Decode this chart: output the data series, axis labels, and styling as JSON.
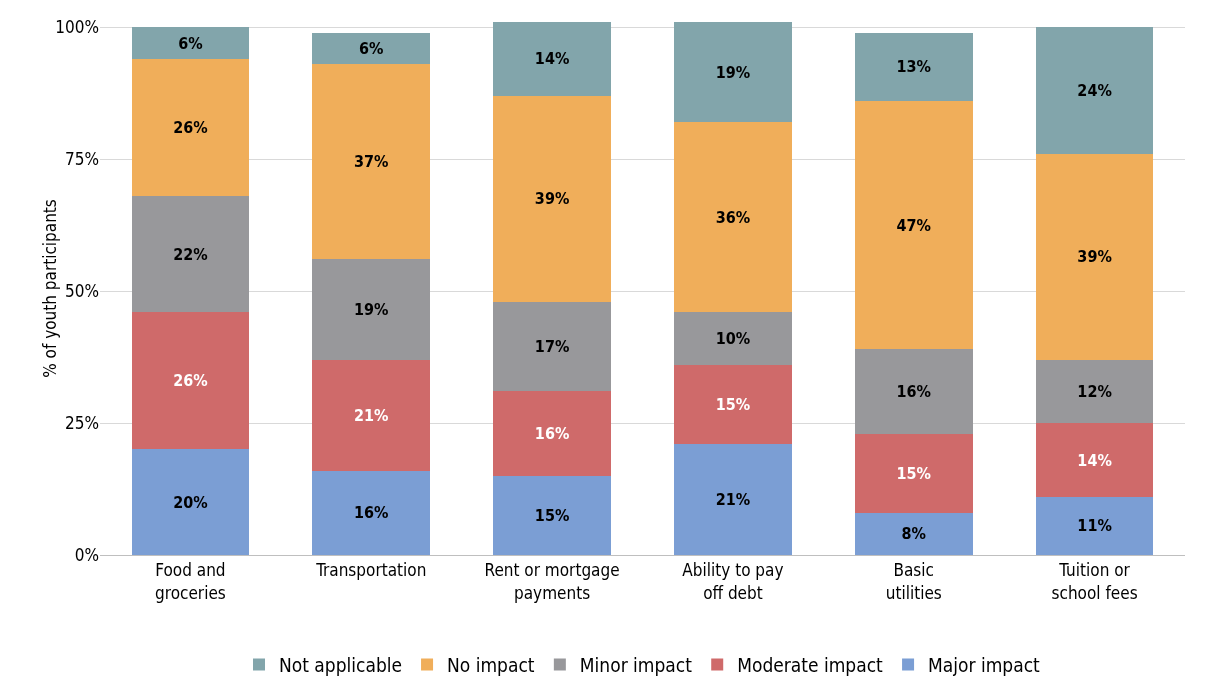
{
  "chart_data": {
    "type": "bar",
    "stacked": true,
    "grid": "y",
    "legend": "bottom",
    "ylabel": "% of youth participants",
    "categories": [
      "Food and\ngroceries",
      "Transportation",
      "Rent or mortgage\npayments",
      "Ability to pay\noff debt",
      "Basic\nutilities",
      "Tuition or\nschool fees"
    ],
    "ylim": [
      0,
      101
    ],
    "yticks": [
      {
        "value": 0,
        "label": "0%"
      },
      {
        "value": 25,
        "label": "25%"
      },
      {
        "value": 50,
        "label": "50%"
      },
      {
        "value": 75,
        "label": "75%"
      },
      {
        "value": 100,
        "label": "100%"
      }
    ],
    "series": [
      {
        "name": "Major impact",
        "color": "#7b9ed4",
        "values": [
          20,
          16,
          15,
          21,
          8,
          11
        ],
        "value_labels": [
          "20%",
          "16%",
          "15%",
          "21%",
          "8%",
          "11%"
        ]
      },
      {
        "name": "Moderate impact",
        "color": "#cf6a6a",
        "values": [
          26,
          21,
          16,
          15,
          15,
          14
        ],
        "value_labels": [
          "26%",
          "21%",
          "16%",
          "15%",
          "15%",
          "14%"
        ]
      },
      {
        "name": "Minor impact",
        "color": "#98989b",
        "values": [
          22,
          19,
          17,
          10,
          16,
          12
        ],
        "value_labels": [
          "22%",
          "19%",
          "17%",
          "10%",
          "16%",
          "12%"
        ]
      },
      {
        "name": "No impact",
        "color": "#f0ae5a",
        "values": [
          26,
          37,
          39,
          36,
          47,
          39
        ],
        "value_labels": [
          "26%",
          "37%",
          "39%",
          "36%",
          "47%",
          "39%"
        ]
      },
      {
        "name": "Not applicable",
        "color": "#82a5ab",
        "values": [
          6,
          6,
          14,
          19,
          13,
          24
        ],
        "value_labels": [
          "6%",
          "6%",
          "14%",
          "19%",
          "13%",
          "24%"
        ]
      }
    ]
  }
}
